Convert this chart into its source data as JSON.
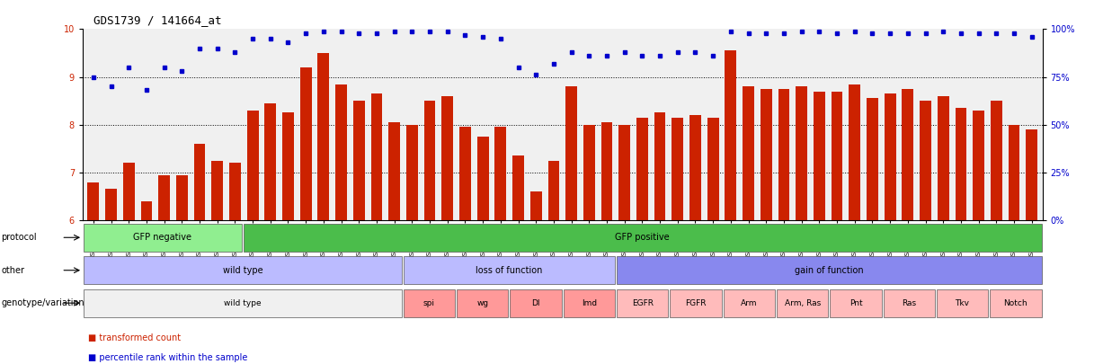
{
  "title": "GDS1739 / 141664_at",
  "samples": [
    "GSM88220",
    "GSM88221",
    "GSM88222",
    "GSM88244",
    "GSM88245",
    "GSM88246",
    "GSM88259",
    "GSM88260",
    "GSM88261",
    "GSM88223",
    "GSM88224",
    "GSM88225",
    "GSM88247",
    "GSM88248",
    "GSM88249",
    "GSM88262",
    "GSM88263",
    "GSM88264",
    "GSM88217",
    "GSM88218",
    "GSM88219",
    "GSM88241",
    "GSM88242",
    "GSM88243",
    "GSM88250",
    "GSM88251",
    "GSM88252",
    "GSM88253",
    "GSM88254",
    "GSM88255",
    "GSM88211",
    "GSM88212",
    "GSM88213",
    "GSM88214",
    "GSM88215",
    "GSM88216",
    "GSM88226",
    "GSM88227",
    "GSM88228",
    "GSM88229",
    "GSM88230",
    "GSM88231",
    "GSM88232",
    "GSM88233",
    "GSM88234",
    "GSM88235",
    "GSM88236",
    "GSM88237",
    "GSM88238",
    "GSM88239",
    "GSM88240",
    "GSM88256",
    "GSM88257",
    "GSM88258"
  ],
  "bar_values": [
    6.8,
    6.65,
    7.2,
    6.4,
    6.95,
    6.95,
    7.6,
    7.25,
    7.2,
    8.3,
    8.45,
    8.25,
    9.2,
    9.5,
    8.85,
    8.5,
    8.65,
    8.05,
    8.0,
    8.5,
    8.6,
    7.95,
    7.75,
    7.95,
    7.35,
    6.6,
    7.25,
    8.8,
    8.0,
    8.05,
    8.0,
    8.15,
    8.25,
    8.15,
    8.2,
    8.15,
    9.55,
    8.8,
    8.75,
    8.75,
    8.8,
    8.7,
    8.7,
    8.85,
    8.55,
    8.65,
    8.75,
    8.5,
    8.6,
    8.35,
    8.3,
    8.5,
    8.0,
    7.9
  ],
  "percentile_raw": [
    75,
    70,
    80,
    68,
    80,
    78,
    90,
    90,
    88,
    95,
    95,
    93,
    98,
    99,
    99,
    98,
    98,
    99,
    99,
    99,
    99,
    97,
    96,
    95,
    80,
    76,
    82,
    88,
    86,
    86,
    88,
    86,
    86,
    88,
    88,
    86,
    99,
    98,
    98,
    98,
    99,
    99,
    98,
    99,
    98,
    98,
    98,
    98,
    99,
    98,
    98,
    98,
    98,
    96
  ],
  "ylim_left": [
    6,
    10
  ],
  "yticks_left": [
    6,
    7,
    8,
    9,
    10
  ],
  "ylim_right": [
    0,
    100
  ],
  "yticks_right": [
    0,
    25,
    50,
    75,
    100
  ],
  "yticklabels_right": [
    "0%",
    "25%",
    "50%",
    "75%",
    "100%"
  ],
  "bar_color": "#CC2200",
  "dot_color": "#0000CC",
  "plot_bg": "#F0F0F0",
  "protocol_groups": [
    {
      "label": "GFP negative",
      "start": 0,
      "end": 8,
      "color": "#90EE90"
    },
    {
      "label": "GFP positive",
      "start": 9,
      "end": 53,
      "color": "#4BBD4B"
    }
  ],
  "other_groups": [
    {
      "label": "wild type",
      "start": 0,
      "end": 17,
      "color": "#BBBBFF"
    },
    {
      "label": "loss of function",
      "start": 18,
      "end": 29,
      "color": "#BBBBFF"
    },
    {
      "label": "gain of function",
      "start": 30,
      "end": 53,
      "color": "#8888EE"
    }
  ],
  "genotype_groups": [
    {
      "label": "wild type",
      "start": 0,
      "end": 17,
      "color": "#F0F0F0"
    },
    {
      "label": "spi",
      "start": 18,
      "end": 20,
      "color": "#FF9999"
    },
    {
      "label": "wg",
      "start": 21,
      "end": 23,
      "color": "#FF9999"
    },
    {
      "label": "Dl",
      "start": 24,
      "end": 26,
      "color": "#FF9999"
    },
    {
      "label": "Imd",
      "start": 27,
      "end": 29,
      "color": "#FF9999"
    },
    {
      "label": "EGFR",
      "start": 30,
      "end": 32,
      "color": "#FFBBBB"
    },
    {
      "label": "FGFR",
      "start": 33,
      "end": 35,
      "color": "#FFBBBB"
    },
    {
      "label": "Arm",
      "start": 36,
      "end": 38,
      "color": "#FFBBBB"
    },
    {
      "label": "Arm, Ras",
      "start": 39,
      "end": 41,
      "color": "#FFBBBB"
    },
    {
      "label": "Pnt",
      "start": 42,
      "end": 44,
      "color": "#FFBBBB"
    },
    {
      "label": "Ras",
      "start": 45,
      "end": 47,
      "color": "#FFBBBB"
    },
    {
      "label": "Tkv",
      "start": 48,
      "end": 50,
      "color": "#FFBBBB"
    },
    {
      "label": "Notch",
      "start": 51,
      "end": 53,
      "color": "#FFBBBB"
    }
  ]
}
